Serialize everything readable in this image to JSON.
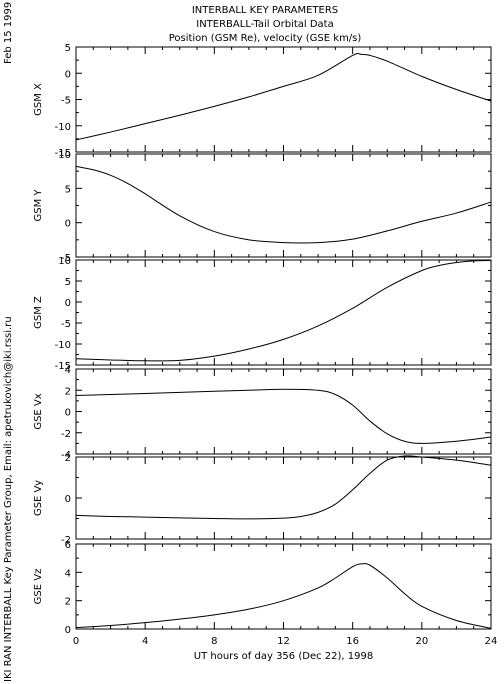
{
  "header": {
    "title_lines": [
      "INTERBALL KEY PARAMETERS",
      "INTERBALL-Tail Orbital Data",
      "Position (GSM Re), velocity (GSE km/s)"
    ],
    "date_stamp": "Feb 15 1999",
    "credit": "IKI RAN INTERBALL Key Parameter Group, Email: apetrukovich@iki.rssi.ru"
  },
  "chart_data": [
    {
      "type": "line",
      "ylabel": "GSM X",
      "xlim": [
        0,
        24
      ],
      "ylim": [
        -15,
        5
      ],
      "yticks": [
        5,
        0,
        -5,
        -10,
        -15
      ],
      "x": [
        0,
        2,
        4,
        6,
        8,
        10,
        12,
        14,
        16,
        16.5,
        17,
        18,
        20,
        22,
        24
      ],
      "values": [
        -12.7,
        -11.2,
        -9.6,
        -8.0,
        -6.3,
        -4.5,
        -2.5,
        -0.4,
        3.4,
        3.6,
        3.4,
        2.3,
        -0.6,
        -3.1,
        -5.3
      ]
    },
    {
      "type": "line",
      "ylabel": "GSM Y",
      "xlim": [
        0,
        24
      ],
      "ylim": [
        -5,
        10
      ],
      "yticks": [
        10,
        5,
        0,
        -5
      ],
      "x": [
        0,
        1,
        2,
        3,
        4,
        6,
        8,
        10,
        12,
        14,
        16,
        18,
        20,
        22,
        24
      ],
      "values": [
        8.2,
        7.7,
        6.9,
        5.7,
        4.2,
        1.0,
        -1.3,
        -2.5,
        -2.9,
        -2.9,
        -2.4,
        -1.2,
        0.2,
        1.4,
        3.0
      ]
    },
    {
      "type": "line",
      "ylabel": "GSM Z",
      "xlim": [
        0,
        24
      ],
      "ylim": [
        -15,
        10
      ],
      "yticks": [
        10,
        5,
        0,
        -5,
        -10,
        -15
      ],
      "x": [
        0,
        2,
        4,
        6,
        8,
        10,
        12,
        14,
        16,
        18,
        20,
        21,
        22,
        23,
        24
      ],
      "values": [
        -13.5,
        -13.8,
        -14.0,
        -13.9,
        -12.9,
        -11.2,
        -8.9,
        -5.7,
        -1.5,
        3.5,
        7.5,
        8.7,
        9.4,
        9.8,
        9.9
      ]
    },
    {
      "type": "line",
      "ylabel": "GSE Vx",
      "xlim": [
        0,
        24
      ],
      "ylim": [
        -4,
        4
      ],
      "yticks": [
        4,
        2,
        0,
        -2,
        -4
      ],
      "x": [
        0,
        2,
        4,
        6,
        8,
        10,
        12,
        14,
        15,
        16,
        17,
        18,
        19,
        20,
        22,
        24
      ],
      "values": [
        1.5,
        1.6,
        1.7,
        1.8,
        1.9,
        2.0,
        2.1,
        2.0,
        1.6,
        0.6,
        -0.9,
        -2.1,
        -2.8,
        -3.0,
        -2.8,
        -2.4
      ]
    },
    {
      "type": "line",
      "ylabel": "GSE Vy",
      "xlim": [
        0,
        24
      ],
      "ylim": [
        -2,
        2
      ],
      "yticks": [
        2,
        0,
        -2
      ],
      "x": [
        0,
        2,
        4,
        6,
        8,
        10,
        12,
        13,
        14,
        15,
        16,
        17,
        18,
        19,
        20,
        22,
        24
      ],
      "values": [
        -0.85,
        -0.9,
        -0.93,
        -0.97,
        -1.0,
        -1.02,
        -0.98,
        -0.9,
        -0.7,
        -0.3,
        0.4,
        1.2,
        1.85,
        2.05,
        2.0,
        1.85,
        1.6
      ]
    },
    {
      "type": "line",
      "ylabel": "GSE Vz",
      "xlabel": "UT hours of day 356 (Dec 22), 1998",
      "xlim": [
        0,
        24
      ],
      "ylim": [
        0,
        6
      ],
      "yticks": [
        6,
        4,
        2,
        0
      ],
      "xticks": [
        0,
        4,
        8,
        12,
        16,
        20,
        24
      ],
      "x": [
        0,
        2,
        4,
        6,
        8,
        10,
        12,
        14,
        15,
        16,
        16.5,
        17,
        18,
        19,
        20,
        22,
        24
      ],
      "values": [
        0.1,
        0.25,
        0.45,
        0.7,
        1.0,
        1.4,
        2.0,
        2.9,
        3.6,
        4.4,
        4.6,
        4.5,
        3.6,
        2.5,
        1.6,
        0.6,
        0.05
      ]
    }
  ]
}
